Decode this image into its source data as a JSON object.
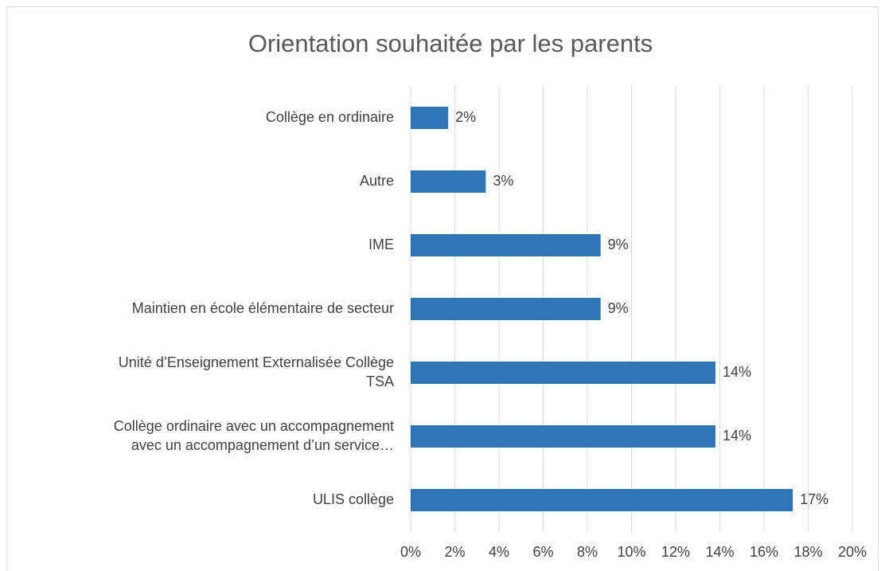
{
  "chart_data": {
    "type": "barh",
    "title": "Orientation souhaitée par les parents",
    "categories": [
      "Collège en ordinaire",
      "Autre",
      "IME",
      "Maintien en école élémentaire de secteur",
      "Unité d’Enseignement Externalisée Collège\nTSA",
      "Collège ordinaire avec un accompagnement\navec un accompagnement d’un service…",
      "ULIS collège"
    ],
    "values": [
      1.7,
      3.4,
      8.6,
      8.6,
      13.8,
      13.8,
      17.3
    ],
    "value_labels": [
      "2%",
      "3%",
      "9%",
      "9%",
      "14%",
      "14%",
      "17%"
    ],
    "color": "#2e75b6",
    "xlim": [
      0,
      20
    ],
    "xticks": [
      {
        "value": 0,
        "label": "0%"
      },
      {
        "value": 2,
        "label": "2%"
      },
      {
        "value": 4,
        "label": "4%"
      },
      {
        "value": 6,
        "label": "6%"
      },
      {
        "value": 8,
        "label": "8%"
      },
      {
        "value": 10,
        "label": "10%"
      },
      {
        "value": 12,
        "label": "12%"
      },
      {
        "value": 14,
        "label": "14%"
      },
      {
        "value": 16,
        "label": "16%"
      },
      {
        "value": 18,
        "label": "18%"
      },
      {
        "value": 20,
        "label": "20%"
      }
    ],
    "grid": true
  }
}
